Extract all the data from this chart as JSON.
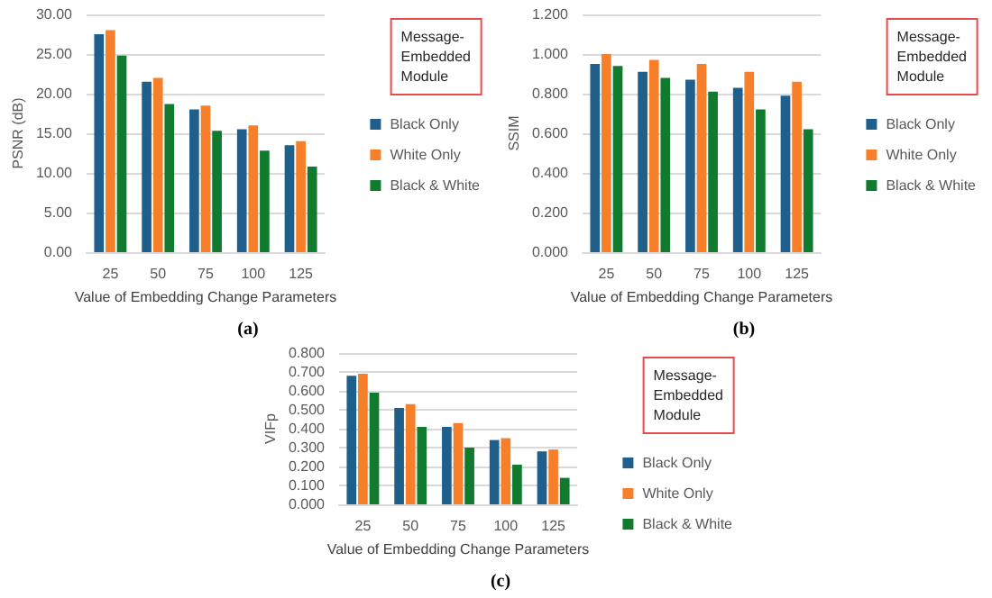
{
  "chart_data": [
    {
      "type": "bar",
      "xlabel": "Value of Embedding Change Parameters",
      "ylabel": "PSNR (dB)",
      "legend_title": "Message-Embedded Module",
      "annotations": [
        "(a)"
      ],
      "categories": [
        "25",
        "50",
        "75",
        "100",
        "125"
      ],
      "series": [
        {
          "name": "Black Only",
          "color": "#1f5f8b",
          "values": [
            27.5,
            21.5,
            18.0,
            15.5,
            13.5
          ]
        },
        {
          "name": "White Only",
          "color": "#f77f29",
          "values": [
            28.0,
            22.0,
            18.5,
            16.0,
            14.0
          ]
        },
        {
          "name": "Black & White",
          "color": "#107a2e",
          "values": [
            24.8,
            18.7,
            15.3,
            12.8,
            10.8
          ]
        }
      ],
      "ylim": [
        0,
        30
      ],
      "yticks": [
        {
          "value": 0,
          "label": "0.00"
        },
        {
          "value": 5,
          "label": "5.00"
        },
        {
          "value": 10,
          "label": "10.00"
        },
        {
          "value": 15,
          "label": "15.00"
        },
        {
          "value": 20,
          "label": "20.00"
        },
        {
          "value": 25,
          "label": "25.00"
        },
        {
          "value": 30,
          "label": "30.00"
        }
      ],
      "grid": "y",
      "legend": "right"
    },
    {
      "type": "bar",
      "xlabel": "Value of Embedding Change Parameters",
      "ylabel": "SSIM",
      "legend_title": "Message-Embedded Module",
      "annotations": [
        "(b)"
      ],
      "categories": [
        "25",
        "50",
        "75",
        "100",
        "125"
      ],
      "series": [
        {
          "name": "Black Only",
          "color": "#1f5f8b",
          "values": [
            0.95,
            0.91,
            0.87,
            0.83,
            0.79
          ]
        },
        {
          "name": "White Only",
          "color": "#f77f29",
          "values": [
            1.0,
            0.97,
            0.95,
            0.91,
            0.86
          ]
        },
        {
          "name": "Black & White",
          "color": "#107a2e",
          "values": [
            0.94,
            0.88,
            0.81,
            0.72,
            0.62
          ]
        }
      ],
      "ylim": [
        0,
        1.2
      ],
      "yticks": [
        {
          "value": 0,
          "label": "0.000"
        },
        {
          "value": 0.2,
          "label": "0.200"
        },
        {
          "value": 0.4,
          "label": "0.400"
        },
        {
          "value": 0.6,
          "label": "0.600"
        },
        {
          "value": 0.8,
          "label": "0.800"
        },
        {
          "value": 1.0,
          "label": "1.000"
        },
        {
          "value": 1.2,
          "label": "1.200"
        }
      ],
      "grid": "y",
      "legend": "right"
    },
    {
      "type": "bar",
      "xlabel": "Value of Embedding Change Parameters",
      "ylabel": "VIFp",
      "legend_title": "Message-Embedded Module",
      "annotations": [
        "(c)"
      ],
      "categories": [
        "25",
        "50",
        "75",
        "100",
        "125"
      ],
      "series": [
        {
          "name": "Black Only",
          "color": "#1f5f8b",
          "values": [
            0.68,
            0.51,
            0.41,
            0.34,
            0.28
          ]
        },
        {
          "name": "White Only",
          "color": "#f77f29",
          "values": [
            0.69,
            0.53,
            0.43,
            0.35,
            0.29
          ]
        },
        {
          "name": "Black & White",
          "color": "#107a2e",
          "values": [
            0.59,
            0.41,
            0.3,
            0.21,
            0.14
          ]
        }
      ],
      "ylim": [
        0,
        0.8
      ],
      "yticks": [
        {
          "value": 0,
          "label": "0.000"
        },
        {
          "value": 0.1,
          "label": "0.100"
        },
        {
          "value": 0.2,
          "label": "0.200"
        },
        {
          "value": 0.3,
          "label": "0.300"
        },
        {
          "value": 0.4,
          "label": "0.400"
        },
        {
          "value": 0.5,
          "label": "0.500"
        },
        {
          "value": 0.6,
          "label": "0.600"
        },
        {
          "value": 0.7,
          "label": "0.700"
        },
        {
          "value": 0.8,
          "label": "0.800"
        }
      ],
      "grid": "y",
      "legend": "right"
    }
  ]
}
